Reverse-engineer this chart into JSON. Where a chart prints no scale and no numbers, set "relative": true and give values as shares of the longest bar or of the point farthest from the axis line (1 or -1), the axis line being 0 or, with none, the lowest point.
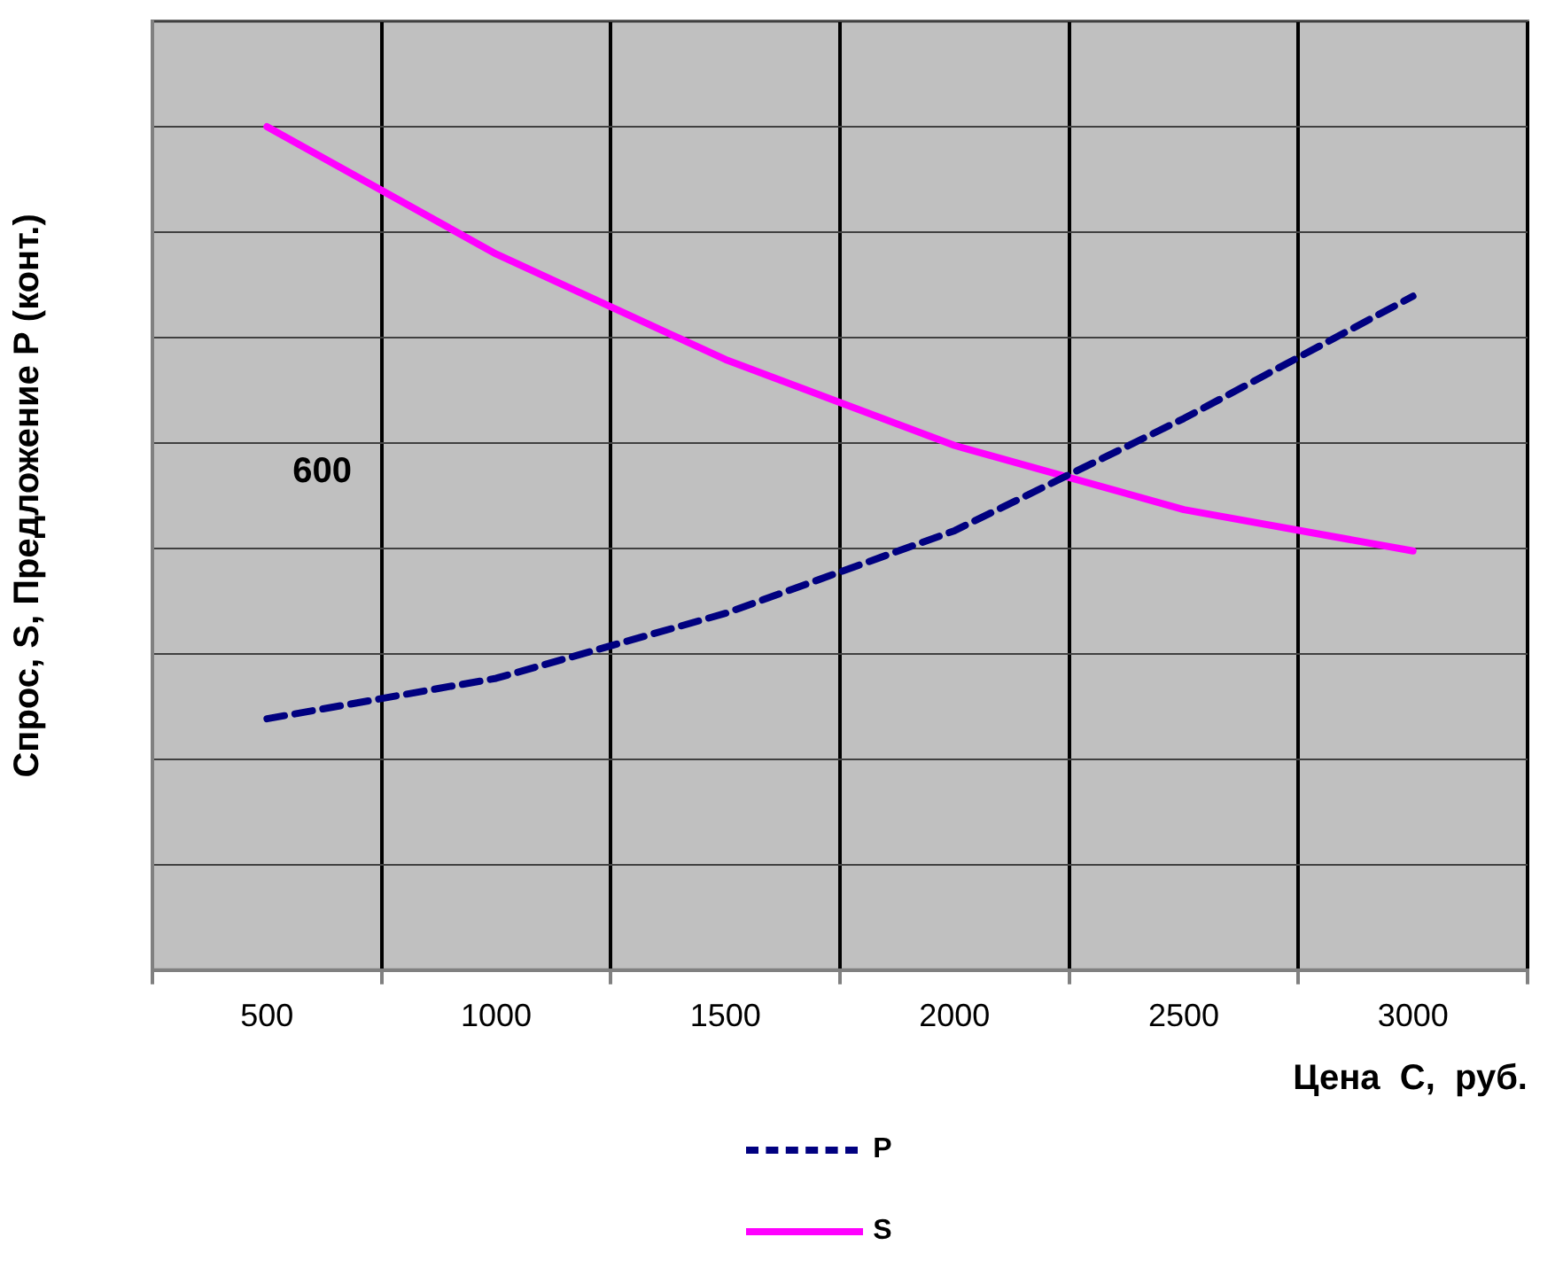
{
  "chart_data": {
    "type": "line",
    "relative": true,
    "xlabel": "Цена  С,  руб.",
    "ylabel": "Спрос, S, Предложение Р (конт.)",
    "categories": [
      "500",
      "1000",
      "1500",
      "2000",
      "2500",
      "3000"
    ],
    "series": [
      {
        "name": "P",
        "color": "#000080",
        "line_style": "dashed",
        "values": [
          0.298,
          0.346,
          0.423,
          0.521,
          0.654,
          0.799
        ]
      },
      {
        "name": "S",
        "color": "#ff00ff",
        "line_style": "solid",
        "values": [
          1,
          0.849,
          0.724,
          0.622,
          0.546,
          0.497
        ]
      }
    ],
    "annotations": [
      "600"
    ],
    "grid": true,
    "legend": "bottom",
    "marker": "none"
  }
}
